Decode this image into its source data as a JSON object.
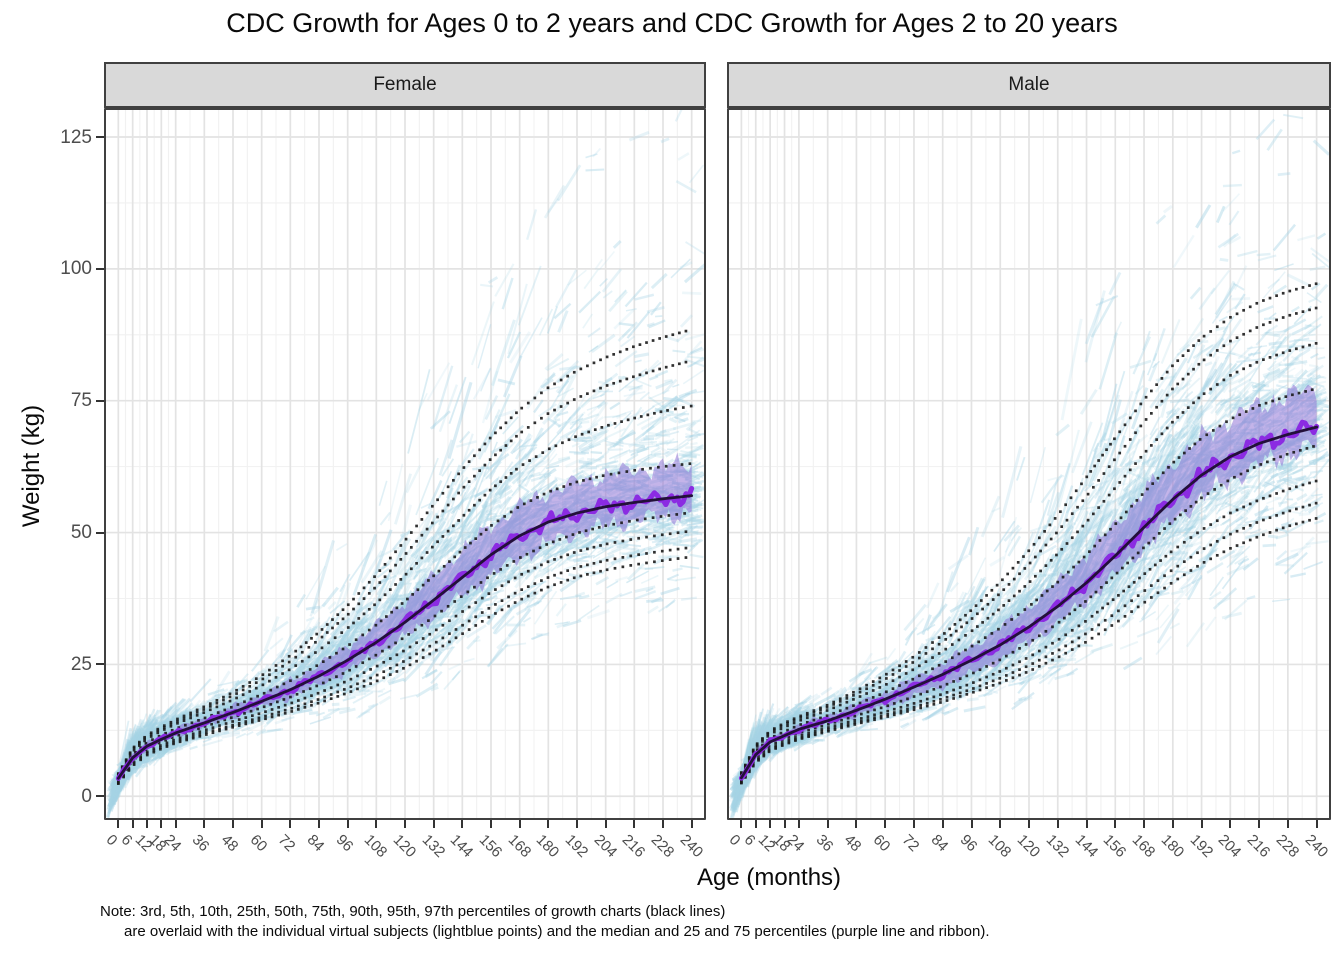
{
  "note": {
    "line1": "Note: 3rd, 5th, 10th, 25th, 50th, 75th, 90th, 95th, 97th percentiles of growth charts (black lines)",
    "line2": "are overlaid with the individual virtual subjects (lightblue points) and the median and 25 and 75 percentiles (purple line and ribbon)."
  },
  "chart_data": {
    "type": "line",
    "title": "CDC Growth for Ages 0 to 2 years and CDC Growth for Ages 2 to 20 years",
    "xlabel": "Age (months)",
    "ylabel": "Weight (kg)",
    "xlim": [
      0,
      240
    ],
    "ylim": [
      0,
      130
    ],
    "x_ticks": [
      0,
      6,
      12,
      18,
      24,
      36,
      48,
      60,
      72,
      84,
      96,
      108,
      120,
      132,
      144,
      156,
      168,
      180,
      192,
      204,
      216,
      228,
      240
    ],
    "y_ticks": [
      0,
      25,
      50,
      75,
      100,
      125
    ],
    "grid": "on",
    "legend": "none",
    "percentile_labels": [
      "3rd",
      "5th",
      "10th",
      "25th",
      "50th",
      "75th",
      "90th",
      "95th",
      "97th"
    ],
    "ages": [
      0,
      6,
      12,
      18,
      24,
      36,
      48,
      60,
      72,
      84,
      96,
      108,
      120,
      132,
      144,
      156,
      168,
      180,
      192,
      204,
      216,
      228,
      240
    ],
    "facets": [
      {
        "name": "Female",
        "percentiles": {
          "p3": [
            2.4,
            5.8,
            7.8,
            9.0,
            10.1,
            11.6,
            13.1,
            14.5,
            16.0,
            17.7,
            19.6,
            21.8,
            24.4,
            27.4,
            30.8,
            34.2,
            37.2,
            39.7,
            41.6,
            42.9,
            43.9,
            44.7,
            45.4
          ],
          "p5": [
            2.5,
            6.0,
            8.1,
            9.3,
            10.4,
            12.0,
            13.5,
            15.0,
            16.6,
            18.4,
            20.5,
            22.9,
            25.7,
            28.9,
            32.4,
            35.9,
            39.0,
            41.5,
            43.4,
            44.7,
            45.7,
            46.5,
            47.2
          ],
          "p10": [
            2.7,
            6.3,
            8.4,
            9.7,
            10.8,
            12.5,
            14.2,
            15.8,
            17.6,
            19.6,
            21.9,
            24.6,
            27.7,
            31.2,
            35.0,
            38.7,
            41.9,
            44.5,
            46.4,
            47.8,
            48.8,
            49.6,
            50.3
          ],
          "p25": [
            3.0,
            6.8,
            9.0,
            10.3,
            11.4,
            13.2,
            15.0,
            16.8,
            18.8,
            21.1,
            23.7,
            26.8,
            30.2,
            34.0,
            38.0,
            41.9,
            45.2,
            47.9,
            49.9,
            51.3,
            52.3,
            53.1,
            53.8
          ],
          "p50": [
            3.4,
            7.3,
            9.5,
            10.8,
            12.0,
            13.9,
            15.9,
            18.0,
            20.2,
            22.8,
            25.8,
            29.2,
            33.0,
            37.2,
            41.5,
            45.8,
            49.4,
            52.0,
            53.7,
            54.9,
            55.7,
            56.4,
            57.0
          ],
          "p75": [
            3.7,
            7.9,
            10.2,
            11.6,
            12.8,
            14.8,
            17.0,
            19.3,
            21.9,
            25.0,
            28.5,
            32.5,
            37.0,
            41.8,
            46.7,
            51.3,
            55.0,
            57.7,
            59.6,
            60.9,
            61.8,
            62.5,
            63.1
          ],
          "p90": [
            4.0,
            8.5,
            10.9,
            12.4,
            13.7,
            15.9,
            18.3,
            21.0,
            24.1,
            27.7,
            31.9,
            36.6,
            41.9,
            47.5,
            53.0,
            58.2,
            62.5,
            65.8,
            68.3,
            70.2,
            71.7,
            73.0,
            74.0
          ],
          "p95": [
            4.2,
            8.9,
            11.3,
            12.8,
            14.1,
            16.5,
            19.1,
            22.1,
            25.6,
            29.7,
            34.4,
            39.8,
            45.8,
            52.1,
            58.3,
            64.0,
            68.8,
            72.6,
            75.5,
            77.8,
            79.6,
            81.2,
            82.6
          ],
          "p97": [
            4.3,
            9.1,
            11.6,
            13.1,
            14.5,
            17.0,
            19.7,
            22.9,
            26.7,
            31.1,
            36.2,
            42.0,
            48.5,
            55.3,
            62.0,
            68.1,
            73.3,
            77.5,
            80.7,
            83.2,
            85.3,
            87.0,
            88.5
          ]
        }
      },
      {
        "name": "Male",
        "percentiles": {
          "p3": [
            2.5,
            6.4,
            8.6,
            9.8,
            10.8,
            12.3,
            13.7,
            15.0,
            16.4,
            17.9,
            19.6,
            21.5,
            23.7,
            26.3,
            29.3,
            32.8,
            36.7,
            40.6,
            44.1,
            47.0,
            49.3,
            51.2,
            52.7
          ],
          "p5": [
            2.6,
            6.6,
            8.8,
            10.0,
            11.0,
            12.6,
            14.0,
            15.4,
            16.9,
            18.5,
            20.3,
            22.4,
            24.8,
            27.6,
            30.9,
            34.7,
            38.9,
            43.0,
            46.7,
            49.7,
            52.1,
            54.0,
            55.6
          ],
          "p10": [
            2.8,
            6.9,
            9.1,
            10.4,
            11.4,
            13.0,
            14.5,
            16.0,
            17.6,
            19.4,
            21.4,
            23.7,
            26.4,
            29.6,
            33.3,
            37.6,
            42.1,
            46.6,
            50.5,
            53.7,
            56.2,
            58.2,
            59.8
          ],
          "p25": [
            3.1,
            7.4,
            9.6,
            10.9,
            12.0,
            13.6,
            15.3,
            17.0,
            18.9,
            20.9,
            23.2,
            25.9,
            29.1,
            32.8,
            37.1,
            42.0,
            47.2,
            52.2,
            56.6,
            60.1,
            62.8,
            64.9,
            66.5
          ],
          "p50": [
            3.5,
            7.9,
            10.3,
            11.5,
            12.7,
            14.3,
            16.3,
            18.4,
            20.7,
            23.1,
            25.8,
            28.7,
            32.1,
            36.0,
            40.5,
            45.6,
            51.0,
            56.3,
            60.9,
            64.4,
            66.9,
            68.6,
            70.0
          ],
          "p75": [
            3.8,
            8.6,
            11.0,
            12.3,
            13.5,
            15.3,
            17.4,
            19.7,
            22.3,
            25.2,
            28.4,
            31.9,
            36.0,
            40.6,
            45.8,
            51.6,
            57.6,
            63.2,
            67.9,
            71.5,
            74.1,
            75.9,
            77.3
          ],
          "p90": [
            4.2,
            9.2,
            11.8,
            13.1,
            14.3,
            16.3,
            18.6,
            21.1,
            24.1,
            27.5,
            31.3,
            35.6,
            40.5,
            46.0,
            52.0,
            58.5,
            65.0,
            71.0,
            76.0,
            79.8,
            82.5,
            84.4,
            85.9
          ],
          "p95": [
            4.4,
            9.5,
            12.2,
            13.6,
            14.8,
            16.9,
            19.4,
            22.2,
            25.5,
            29.3,
            33.6,
            38.5,
            44.0,
            50.2,
            56.9,
            64.0,
            71.0,
            77.3,
            82.4,
            86.3,
            89.1,
            91.1,
            92.6
          ],
          "p97": [
            4.5,
            9.7,
            12.4,
            13.9,
            15.1,
            17.3,
            20.0,
            23.0,
            26.5,
            30.6,
            35.3,
            40.6,
            46.6,
            53.3,
            60.5,
            68.0,
            75.2,
            81.7,
            86.9,
            90.8,
            93.7,
            95.7,
            97.2
          ]
        }
      }
    ],
    "colors": {
      "subject_points": "#add8e6",
      "percentile_dots": "#1a1a1a",
      "median_line": "#8b2be2",
      "p50_overlay_line": "#23103a",
      "ribbon_fill": "#8a6ad4",
      "ribbon_alpha": 0.5,
      "strip_background": "#d9d9d9",
      "panel_border": "#404040",
      "grid_major": "#e3e3e3",
      "grid_minor": "#f1f1f1",
      "tick_text": "#4d4d4d"
    }
  }
}
